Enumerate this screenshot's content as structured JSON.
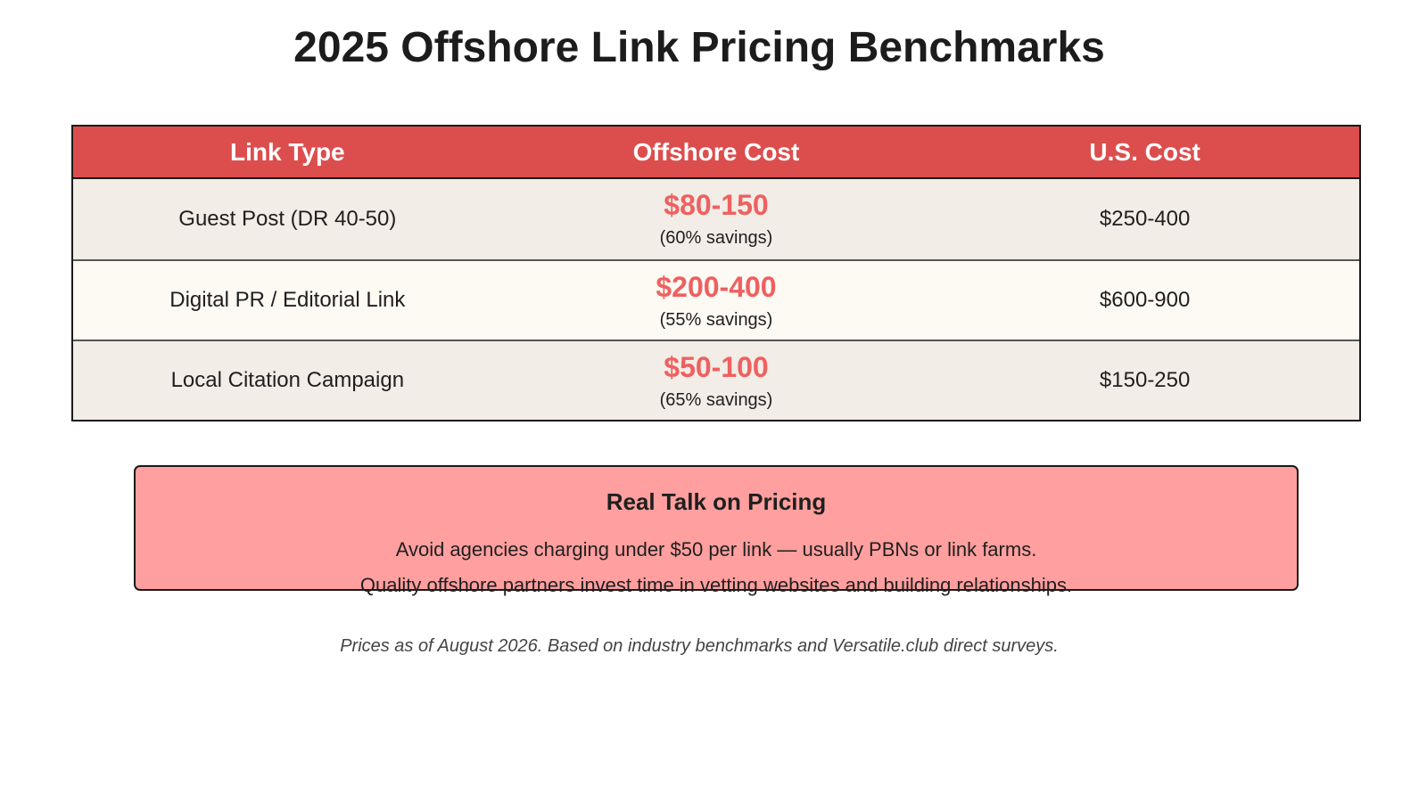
{
  "title": "2025 Offshore Link Pricing Benchmarks",
  "table": {
    "headers": [
      "Link Type",
      "Offshore Cost",
      "U.S. Cost"
    ],
    "rows": [
      {
        "link_type": "Guest Post (DR 40-50)",
        "offshore_cost": "$80-150",
        "savings": "(60% savings)",
        "us_cost": "$250-400"
      },
      {
        "link_type": "Digital PR / Editorial Link",
        "offshore_cost": "$200-400",
        "savings": "(55% savings)",
        "us_cost": "$600-900"
      },
      {
        "link_type": "Local Citation Campaign",
        "offshore_cost": "$50-100",
        "savings": "(65% savings)",
        "us_cost": "$150-250"
      }
    ]
  },
  "callout": {
    "title": "Real Talk on Pricing",
    "lines": [
      "Avoid agencies charging under $50 per link — usually PBNs or link farms.",
      "Quality offshore partners invest time in vetting websites and building relationships."
    ]
  },
  "footnote": "Prices as of August 2026. Based on industry benchmarks and Versatile.club direct surveys.",
  "colors": {
    "header_bg": "#dc4e4e",
    "accent_price": "#ef6060",
    "callout_bg": "#ff9f9f",
    "row_odd_bg": "#f2ede6",
    "row_even_bg": "#fdf9f3"
  }
}
